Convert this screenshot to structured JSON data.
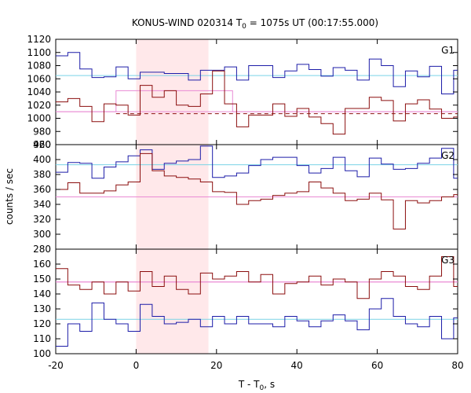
{
  "title_parts": {
    "lead": "KONUS-WIND 020314 T",
    "sub": "0",
    "tail": " = 1075s UT (00:17:55.000)"
  },
  "xlabel_parts": {
    "lead": "T - T",
    "sub": "0",
    "tail": ", s"
  },
  "ylabel": "counts / sec",
  "colors": {
    "blue_curve": "#1c1ca8",
    "red_curve": "#8b0e0e",
    "cyan_line": "#7ad3e6",
    "pink_line": "#e98ad4",
    "band": "#ffe8ea"
  },
  "chart_data": [
    {
      "type": "line",
      "name": "G1",
      "xlim": [
        -20,
        80
      ],
      "ylim": [
        960,
        1120
      ],
      "yticks": [
        960,
        980,
        1000,
        1020,
        1040,
        1060,
        1080,
        1100,
        1120
      ],
      "xticks": [
        -20,
        0,
        20,
        40,
        60,
        80
      ],
      "shaded_interval": [
        0,
        18
      ],
      "bin_edges": [
        -20,
        -17,
        -14,
        -11,
        -8,
        -5,
        -2,
        1,
        4,
        7,
        10,
        13,
        16,
        19,
        22,
        25,
        28,
        31,
        34,
        37,
        40,
        43,
        46,
        49,
        52,
        55,
        58,
        61,
        64,
        67,
        70,
        73,
        76,
        79,
        80
      ],
      "series": [
        {
          "values": [
            1095,
            1100,
            1075,
            1062,
            1063,
            1078,
            1060,
            1070,
            1070,
            1068,
            1068,
            1058,
            1073,
            1073,
            1078,
            1058,
            1080,
            1080,
            1062,
            1072,
            1082,
            1074,
            1064,
            1077,
            1073,
            1058,
            1090,
            1080,
            1048,
            1072,
            1063,
            1079,
            1037,
            1073
          ],
          "color": "#1c1ca8"
        },
        {
          "values": [
            1025,
            1030,
            1018,
            995,
            1022,
            1020,
            1005,
            1050,
            1032,
            1042,
            1020,
            1018,
            1037,
            1072,
            1022,
            987,
            1005,
            1005,
            1022,
            1003,
            1015,
            1002,
            992,
            976,
            1015,
            1015,
            1032,
            1027,
            996,
            1022,
            1028,
            1014,
            1000,
            1002
          ],
          "color": "#8b0e0e"
        }
      ],
      "reference_lines": [
        {
          "y": 1065,
          "color": "#7ad3e6",
          "style": "solid"
        },
        {
          "y": 1010,
          "x_range": [
            -20,
            80
          ],
          "color": "#e98ad4",
          "style": "solid"
        },
        {
          "y": 1007,
          "x_range": [
            -5,
            80
          ],
          "color": "#8b0e0e",
          "style": "dashed"
        }
      ],
      "pink_steps": [
        [
          -20,
          -5,
          1010
        ],
        [
          -5,
          24,
          1042
        ],
        [
          24,
          80,
          1010
        ]
      ]
    },
    {
      "type": "line",
      "name": "G2",
      "xlim": [
        -20,
        80
      ],
      "ylim": [
        280,
        420
      ],
      "yticks": [
        280,
        300,
        320,
        340,
        360,
        380,
        400,
        420
      ],
      "xticks": [
        -20,
        0,
        20,
        40,
        60,
        80
      ],
      "shaded_interval": [
        0,
        18
      ],
      "bin_edges": [
        -20,
        -17,
        -14,
        -11,
        -8,
        -5,
        -2,
        1,
        4,
        7,
        10,
        13,
        16,
        19,
        22,
        25,
        28,
        31,
        34,
        37,
        40,
        43,
        46,
        49,
        52,
        55,
        58,
        61,
        64,
        67,
        70,
        73,
        76,
        79,
        80
      ],
      "series": [
        {
          "values": [
            383,
            396,
            395,
            375,
            390,
            397,
            405,
            413,
            387,
            395,
            398,
            400,
            418,
            376,
            378,
            382,
            392,
            400,
            403,
            403,
            392,
            382,
            388,
            403,
            385,
            377,
            402,
            394,
            387,
            388,
            395,
            402,
            415,
            375
          ],
          "color": "#1c1ca8"
        },
        {
          "values": [
            360,
            369,
            355,
            355,
            358,
            366,
            370,
            408,
            385,
            378,
            376,
            374,
            370,
            357,
            356,
            340,
            345,
            347,
            352,
            355,
            357,
            370,
            362,
            355,
            345,
            347,
            355,
            346,
            307,
            345,
            342,
            345,
            350,
            353
          ],
          "color": "#8b0e0e"
        }
      ],
      "reference_lines": [
        {
          "y": 393,
          "color": "#7ad3e6",
          "style": "solid"
        },
        {
          "y": 350,
          "x_range": [
            -20,
            80
          ],
          "color": "#e98ad4",
          "style": "solid"
        },
        {
          "y": 350,
          "x_range": [
            -5,
            18
          ],
          "color": "#8b0e0e",
          "style": "dashed"
        }
      ],
      "pink_steps": [
        [
          -20,
          80,
          350
        ]
      ]
    },
    {
      "type": "line",
      "name": "G3",
      "xlim": [
        -20,
        80
      ],
      "ylim": [
        100,
        170
      ],
      "yticks": [
        100,
        110,
        120,
        130,
        140,
        150,
        160
      ],
      "xticks": [
        -20,
        0,
        20,
        40,
        60,
        80
      ],
      "shaded_interval": [
        0,
        18
      ],
      "bin_edges": [
        -20,
        -17,
        -14,
        -11,
        -8,
        -5,
        -2,
        1,
        4,
        7,
        10,
        13,
        16,
        19,
        22,
        25,
        28,
        31,
        34,
        37,
        40,
        43,
        46,
        49,
        52,
        55,
        58,
        61,
        64,
        67,
        70,
        73,
        76,
        79,
        80
      ],
      "series": [
        {
          "values": [
            105,
            120,
            115,
            134,
            123,
            120,
            115,
            133,
            125,
            120,
            121,
            123,
            118,
            125,
            120,
            125,
            120,
            120,
            118,
            125,
            122,
            118,
            122,
            126,
            122,
            116,
            130,
            137,
            125,
            120,
            118,
            125,
            110,
            124
          ],
          "color": "#1c1ca8"
        },
        {
          "values": [
            157,
            146,
            143,
            148,
            140,
            148,
            142,
            155,
            145,
            152,
            143,
            140,
            154,
            150,
            152,
            155,
            148,
            153,
            140,
            147,
            148,
            152,
            146,
            150,
            148,
            137,
            150,
            155,
            152,
            145,
            143,
            152,
            165,
            145
          ],
          "color": "#8b0e0e"
        }
      ],
      "reference_lines": [
        {
          "y": 123,
          "color": "#7ad3e6",
          "style": "solid"
        },
        {
          "y": 148,
          "x_range": [
            -20,
            80
          ],
          "color": "#e98ad4",
          "style": "solid"
        }
      ],
      "pink_steps": [
        [
          -20,
          80,
          148
        ]
      ]
    }
  ]
}
